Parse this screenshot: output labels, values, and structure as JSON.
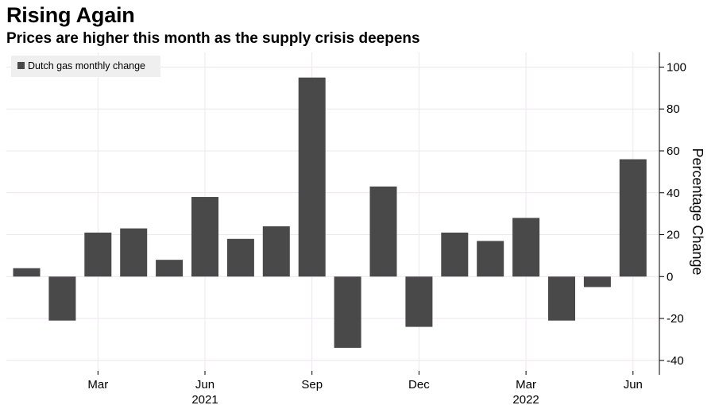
{
  "title": "Rising Again",
  "subtitle": "Prices are higher this month as the supply crisis deepens",
  "colors": {
    "bar": "#4a494a",
    "grid": "#ece6f0",
    "axis": "#000000",
    "legend_bg": "#f0eff0"
  },
  "chart_data": {
    "type": "bar",
    "series": [
      {
        "name": "Dutch gas monthly change",
        "values": [
          4,
          -21,
          21,
          23,
          8,
          38,
          18,
          24,
          95,
          -34,
          43,
          -24,
          21,
          17,
          28,
          -21,
          -5,
          56
        ]
      }
    ],
    "categories": [
      "Jan 2021",
      "Feb 2021",
      "Mar 2021",
      "Apr 2021",
      "May 2021",
      "Jun 2021",
      "Jul 2021",
      "Aug 2021",
      "Sep 2021",
      "Oct 2021",
      "Nov 2021",
      "Dec 2021",
      "Jan 2022",
      "Feb 2022",
      "Mar 2022",
      "Apr 2022",
      "May 2022",
      "Jun 2022"
    ],
    "x_ticks": [
      {
        "index": 2,
        "label": "Mar"
      },
      {
        "index": 5,
        "label": "Jun"
      },
      {
        "index": 8,
        "label": "Sep"
      },
      {
        "index": 11,
        "label": "Dec"
      },
      {
        "index": 14,
        "label": "Mar"
      },
      {
        "index": 17,
        "label": "Jun"
      }
    ],
    "year_labels": [
      {
        "index": 5,
        "label": "2021"
      },
      {
        "index": 14,
        "label": "2022"
      }
    ],
    "ylabel": "Percentage Change",
    "ylim": [
      -45,
      107
    ],
    "y_ticks": [
      -40,
      -20,
      0,
      20,
      40,
      60,
      80,
      100
    ],
    "y_axis_position": "right",
    "legend_position": "top-left",
    "grid": true
  }
}
